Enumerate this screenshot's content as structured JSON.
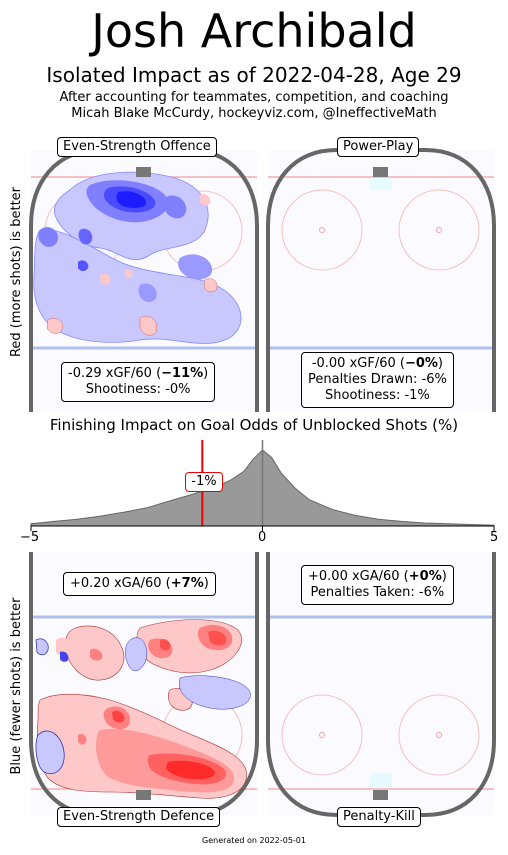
{
  "header": {
    "title": "Josh Archibald",
    "subtitle": "Isolated Impact as of 2022-04-28, Age 29",
    "note_line1": "After accounting for teammates, competition, and coaching",
    "note_line2": "Micah Blake McCurdy, hockeyviz.com, @IneffectiveMath"
  },
  "panels": {
    "ev_offence": {
      "label": "Even-Strength Offence",
      "line1_value": "-0.29 xGF/60 (",
      "line1_bold": "−11%",
      "line1_end": ")",
      "line2": "Shootiness: -0%"
    },
    "pp": {
      "label": "Power-Play",
      "line1_value": "-0.00 xGF/60 (",
      "line1_bold": "−0%",
      "line1_end": ")",
      "line2": "Penalties Drawn: -6%",
      "line3": "Shootiness: -1%"
    },
    "ev_defence": {
      "label": "Even-Strength Defence",
      "line1_value": "+0.20 xGA/60 (",
      "line1_bold": "+7%",
      "line1_end": ")"
    },
    "pk": {
      "label": "Penalty-Kill",
      "line1_value": "+0.00 xGA/60 (",
      "line1_bold": "+0%",
      "line1_end": ")",
      "line2": "Penalties Taken: -6%"
    }
  },
  "axis_labels": {
    "top": "Red (more shots) is better",
    "bottom": "Blue (fewer shots) is better"
  },
  "chart_data": {
    "type": "area",
    "title": "Finishing Impact on Goal Odds of Unblocked Shots (%)",
    "xlim": [
      -5,
      5
    ],
    "x_ticks": [
      "−5",
      "0",
      "5"
    ],
    "marker_value": -1.3,
    "marker_label": "-1%",
    "zero_line": 0,
    "density": {
      "x": [
        -5,
        -4.5,
        -4,
        -3.5,
        -3,
        -2.5,
        -2,
        -1.5,
        -1,
        -0.7,
        -0.4,
        -0.2,
        0,
        0.2,
        0.4,
        0.7,
        1,
        1.5,
        2,
        2.5,
        3,
        3.5,
        4,
        4.5,
        5
      ],
      "y": [
        0.03,
        0.06,
        0.09,
        0.13,
        0.18,
        0.24,
        0.33,
        0.42,
        0.52,
        0.6,
        0.72,
        0.88,
        1.0,
        0.9,
        0.7,
        0.5,
        0.35,
        0.22,
        0.14,
        0.09,
        0.06,
        0.04,
        0.03,
        0.02,
        0.01
      ]
    },
    "colors": {
      "fill": "#999999",
      "marker": "#ee0000",
      "positive": "#ff3333",
      "negative": "#2222ff"
    }
  },
  "footer": "Generated on 2022-05-01"
}
